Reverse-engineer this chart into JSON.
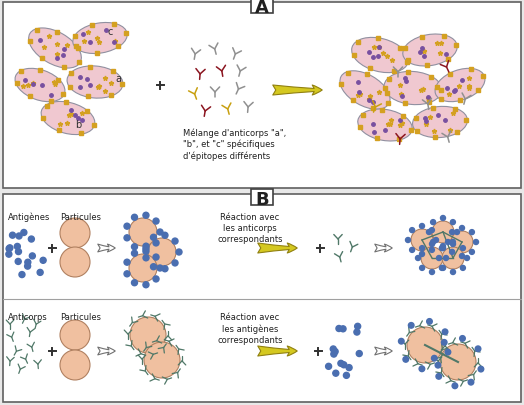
{
  "bg_color": "#e8e8e8",
  "panel_bg": "#ffffff",
  "rbc_fill": "#f0c8d0",
  "rbc_edge": "#9090a0",
  "bead_fill": "#f0c0a0",
  "bead_edge": "#b08060",
  "antigen_color": "#4a6eb0",
  "antibody_gray": "#909090",
  "antibody_dark_red": "#8b1520",
  "antibody_yellow": "#c8a010",
  "antibody_teal": "#507868",
  "epitope_gold": "#d4a020",
  "epitope_purple": "#7850a0",
  "epitope_orange": "#d06020",
  "arrow_yellow_fill": "#d4c820",
  "arrow_yellow_edge": "#908010",
  "arrow_white_fill": "#ffffff",
  "arrow_white_edge": "#707070",
  "text_color": "#202020",
  "label_A": "A",
  "label_B": "B",
  "text_melange": "Mélange d'anticorps \"a\",\n\"b\", et \"c\" spécifiques\nd'épitopes différents",
  "text_antigenes": "Antigènes",
  "text_particules": "Particules",
  "text_reaction_ab": "Réaction avec\nles anticorps\ncorrespondants",
  "text_anticorps": "Anticorps",
  "text_reaction_ag": "Réaction avec\nles antigènes\ncorrespondants",
  "font_size_label": 13,
  "font_size_small": 6.5,
  "font_size_tiny": 6
}
